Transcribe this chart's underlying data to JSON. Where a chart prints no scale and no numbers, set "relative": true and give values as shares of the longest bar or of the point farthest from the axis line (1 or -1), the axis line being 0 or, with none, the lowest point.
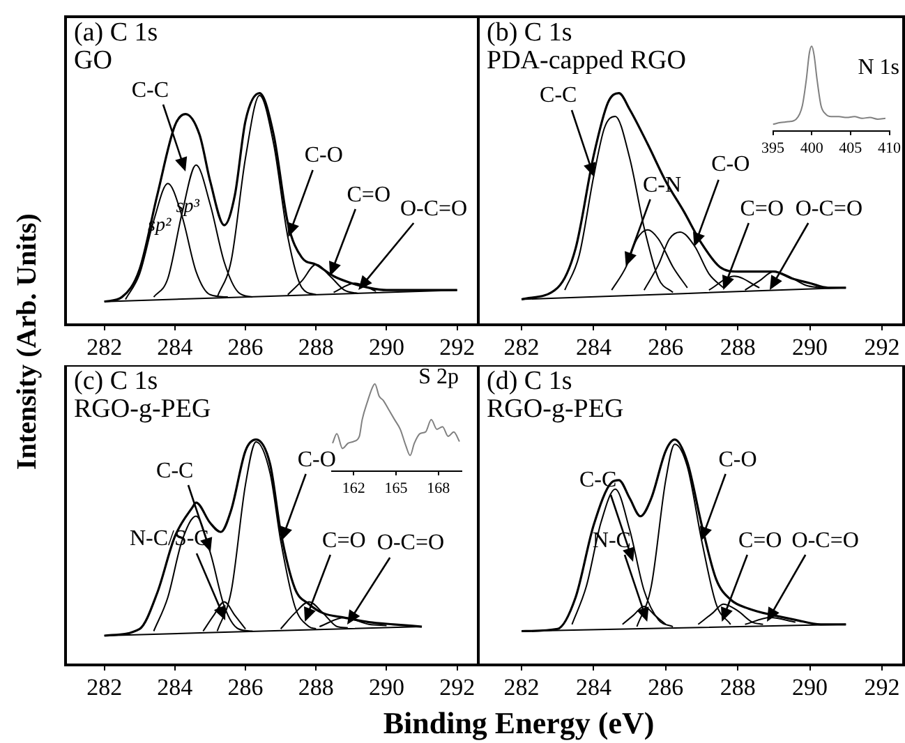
{
  "chart_data": [
    {
      "type": "line",
      "title": "(a) C 1s",
      "subtitle": "GO",
      "ylabel": "Intensity (Arb. Units)",
      "relative": true,
      "xlim": [
        280.9,
        292.6
      ],
      "xticks": [
        282,
        284,
        286,
        288,
        290,
        292
      ],
      "tick_labels": "x",
      "series": [
        {
          "color": "#000000",
          "x": [
            282,
            282.5,
            283,
            283.5,
            284,
            284.3,
            284.7,
            285,
            285.4,
            285.7,
            286,
            286.4,
            286.8,
            287.2,
            287.6,
            288,
            288.5,
            289,
            289.5,
            290,
            291,
            292
          ],
          "values": [
            0.1,
            0.12,
            0.24,
            0.56,
            0.86,
            0.91,
            0.82,
            0.62,
            0.43,
            0.56,
            0.88,
            1.0,
            0.82,
            0.44,
            0.29,
            0.26,
            0.21,
            0.18,
            0.16,
            0.15,
            0.15,
            0.15
          ]
        },
        {
          "color": "#000000",
          "x": [
            282,
            292
          ],
          "values": [
            0.1,
            0.15
          ]
        },
        {
          "name": "sp²",
          "color": "#000000",
          "x": [
            282.6,
            283,
            283.4,
            283.8,
            284.2,
            284.6,
            285,
            285.5
          ],
          "values": [
            0.11,
            0.22,
            0.45,
            0.61,
            0.47,
            0.23,
            0.13,
            0.12
          ]
        },
        {
          "name": "sp³",
          "color": "#000000",
          "x": [
            283.4,
            283.8,
            284.2,
            284.6,
            285,
            285.4,
            285.8,
            286.2
          ],
          "values": [
            0.12,
            0.2,
            0.48,
            0.69,
            0.52,
            0.27,
            0.14,
            0.12
          ]
        },
        {
          "color": "#000000",
          "x": [
            285.2,
            285.6,
            286,
            286.4,
            286.8,
            287.2,
            287.6,
            288
          ],
          "values": [
            0.12,
            0.28,
            0.72,
            0.99,
            0.78,
            0.38,
            0.16,
            0.13
          ]
        },
        {
          "color": "#000000",
          "x": [
            287.2,
            287.6,
            288,
            288.4,
            288.8,
            289.2
          ],
          "values": [
            0.13,
            0.19,
            0.26,
            0.21,
            0.15,
            0.135
          ]
        },
        {
          "color": "#000000",
          "x": [
            288.5,
            289.1,
            289.7
          ],
          "values": [
            0.14,
            0.18,
            0.145
          ]
        }
      ],
      "annotations": [
        {
          "text": "C-C",
          "x": 284.3,
          "y": 0.66
        },
        {
          "text": "C-O",
          "x": 287.2,
          "y": 0.38
        },
        {
          "text": "C=O",
          "x": 288.4,
          "y": 0.21
        },
        {
          "text": "O-C=O",
          "x": 289.2,
          "y": 0.15
        }
      ]
    },
    {
      "type": "line",
      "title": "(b) C 1s",
      "subtitle": "PDA-capped RGO",
      "relative": true,
      "xlim": [
        280.8,
        292.6
      ],
      "xticks": [
        282,
        284,
        286,
        288,
        290,
        292
      ],
      "tick_labels": "x",
      "series": [
        {
          "color": "#000000",
          "x": [
            282,
            283,
            283.5,
            284,
            284.4,
            284.7,
            285,
            285.5,
            286,
            286.5,
            287,
            287.5,
            288,
            288.5,
            289,
            289.5,
            290,
            290.5,
            291
          ],
          "values": [
            0.11,
            0.16,
            0.33,
            0.73,
            0.96,
            1.0,
            0.93,
            0.78,
            0.62,
            0.49,
            0.35,
            0.25,
            0.23,
            0.23,
            0.23,
            0.2,
            0.18,
            0.16,
            0.16
          ]
        },
        {
          "color": "#000000",
          "x": [
            282,
            291
          ],
          "values": [
            0.11,
            0.16
          ]
        },
        {
          "color": "#000000",
          "x": [
            283.2,
            283.6,
            284,
            284.3,
            284.6,
            285,
            285.4,
            285.8,
            286.2
          ],
          "values": [
            0.15,
            0.3,
            0.64,
            0.85,
            0.9,
            0.72,
            0.42,
            0.2,
            0.14
          ]
        },
        {
          "color": "#000000",
          "x": [
            284.5,
            284.9,
            285.2,
            285.5,
            285.8,
            286.2,
            286.6
          ],
          "values": [
            0.15,
            0.25,
            0.37,
            0.41,
            0.37,
            0.25,
            0.16
          ]
        },
        {
          "color": "#000000",
          "x": [
            285.4,
            285.8,
            286.1,
            286.4,
            286.8,
            287.2,
            287.6
          ],
          "values": [
            0.15,
            0.26,
            0.37,
            0.4,
            0.34,
            0.22,
            0.16
          ]
        },
        {
          "color": "#000000",
          "x": [
            287.2,
            287.9,
            288.6
          ],
          "values": [
            0.15,
            0.21,
            0.16
          ]
        },
        {
          "color": "#000000",
          "x": [
            288.2,
            288.6,
            289,
            289.4,
            289.9,
            290.3
          ],
          "values": [
            0.15,
            0.19,
            0.23,
            0.21,
            0.17,
            0.16
          ]
        }
      ],
      "annotations": [
        {
          "text": "C-C",
          "x": 284.0,
          "y": 0.64
        },
        {
          "text": "C-N",
          "x": 284.9,
          "y": 0.25
        },
        {
          "text": "C-O",
          "x": 286.8,
          "y": 0.34
        },
        {
          "text": "C=O",
          "x": 287.6,
          "y": 0.15
        },
        {
          "text": "O-C=O",
          "x": 288.9,
          "y": 0.15
        }
      ]
    },
    {
      "type": "line",
      "title": "N 1s",
      "relative": true,
      "xlim": [
        395,
        410
      ],
      "xticks": [
        395,
        400,
        405,
        410
      ],
      "tick_labels": "x",
      "series": [
        {
          "color": "#808080",
          "x": [
            395,
            396,
            397,
            398,
            398.8,
            399.3,
            399.7,
            400,
            400.3,
            400.7,
            401.2,
            401.8,
            402.5,
            403.5,
            404.5,
            405.5,
            406.5,
            407.5,
            408.5,
            409.5
          ],
          "values": [
            0.08,
            0.1,
            0.11,
            0.14,
            0.3,
            0.6,
            0.92,
            1.0,
            0.9,
            0.6,
            0.3,
            0.2,
            0.17,
            0.17,
            0.16,
            0.17,
            0.15,
            0.16,
            0.14,
            0.15
          ]
        }
      ]
    },
    {
      "type": "line",
      "title": "(c) C 1s",
      "subtitle": "RGO-g-PEG",
      "xlabel": "Binding Energy (eV)",
      "relative": true,
      "xlim": [
        280.9,
        292.6
      ],
      "xticks": [
        282,
        284,
        286,
        288,
        290,
        292
      ],
      "tick_labels": "x",
      "series": [
        {
          "color": "#000000",
          "x": [
            282,
            283,
            283.5,
            284,
            284.5,
            284.6,
            285,
            285.3,
            285.6,
            286,
            286.3,
            286.7,
            287,
            287.4,
            287.8,
            288.2,
            288.8,
            289.5,
            290.2,
            291
          ],
          "values": [
            0.13,
            0.16,
            0.32,
            0.57,
            0.7,
            0.72,
            0.63,
            0.59,
            0.69,
            0.95,
            1.0,
            0.89,
            0.59,
            0.34,
            0.27,
            0.23,
            0.21,
            0.19,
            0.18,
            0.17
          ]
        },
        {
          "color": "#000000",
          "x": [
            282,
            291
          ],
          "values": [
            0.13,
            0.17
          ]
        },
        {
          "color": "#000000",
          "x": [
            283.4,
            283.8,
            284.2,
            284.6,
            285,
            285.4,
            285.8,
            286.2
          ],
          "values": [
            0.15,
            0.3,
            0.55,
            0.66,
            0.5,
            0.26,
            0.16,
            0.15
          ]
        },
        {
          "color": "#000000",
          "x": [
            284.8,
            285.1,
            285.4,
            285.7,
            286
          ],
          "values": [
            0.15,
            0.22,
            0.28,
            0.22,
            0.16
          ]
        },
        {
          "color": "#000000",
          "x": [
            285.2,
            285.6,
            286,
            286.3,
            286.7,
            287,
            287.4,
            287.8,
            288
          ],
          "values": [
            0.15,
            0.33,
            0.8,
            0.99,
            0.85,
            0.55,
            0.26,
            0.17,
            0.16
          ]
        },
        {
          "color": "#000000",
          "x": [
            287,
            287.4,
            287.8,
            288.2,
            288.6,
            288.9
          ],
          "values": [
            0.16,
            0.23,
            0.28,
            0.23,
            0.17,
            0.165
          ]
        },
        {
          "color": "#000000",
          "x": [
            288.1,
            288.8,
            289.5,
            290
          ],
          "values": [
            0.17,
            0.21,
            0.18,
            0.175
          ]
        }
      ],
      "annotations": [
        {
          "text": "C-C",
          "x": 285.0,
          "y": 0.5
        },
        {
          "text": "N-C/S-C",
          "x": 285.44,
          "y": 0.2
        },
        {
          "text": "C-O",
          "x": 287.0,
          "y": 0.55
        },
        {
          "text": "C=O",
          "x": 287.7,
          "y": 0.19
        },
        {
          "text": "O-C=O",
          "x": 288.9,
          "y": 0.18
        }
      ]
    },
    {
      "type": "line",
      "title": "S 2p",
      "relative": true,
      "xlim": [
        160.45,
        169.65
      ],
      "xticks": [
        162,
        165,
        168
      ],
      "tick_labels": "x",
      "series": [
        {
          "color": "#808080",
          "x": [
            160.5,
            160.8,
            161.2,
            161.6,
            162,
            162.4,
            162.6,
            163,
            163.3,
            163.5,
            163.8,
            164.1,
            164.5,
            164.9,
            165.3,
            165.7,
            166,
            166.3,
            166.7,
            167.1,
            167.5,
            167.9,
            168.3,
            168.7,
            169.1,
            169.5
          ],
          "values": [
            0.32,
            0.43,
            0.26,
            0.32,
            0.34,
            0.4,
            0.59,
            0.81,
            0.95,
            1.0,
            0.86,
            0.81,
            0.7,
            0.59,
            0.48,
            0.29,
            0.18,
            0.32,
            0.43,
            0.45,
            0.59,
            0.48,
            0.51,
            0.4,
            0.45,
            0.34
          ]
        }
      ]
    },
    {
      "type": "line",
      "title": "(d) C 1s",
      "subtitle": "RGO-g-PEG",
      "relative": true,
      "xlim": [
        280.8,
        292.6
      ],
      "xticks": [
        282,
        284,
        286,
        288,
        290,
        292
      ],
      "tick_labels": "x",
      "series": [
        {
          "color": "#000000",
          "x": [
            282,
            283,
            283.5,
            284,
            284.5,
            284.7,
            285,
            285.3,
            285.6,
            286,
            286.25,
            286.6,
            287,
            287.4,
            287.8,
            288.3,
            289,
            289.6,
            290.3,
            291
          ],
          "values": [
            0.15,
            0.16,
            0.3,
            0.62,
            0.81,
            0.82,
            0.74,
            0.66,
            0.74,
            0.95,
            1.0,
            0.9,
            0.62,
            0.38,
            0.29,
            0.25,
            0.22,
            0.2,
            0.18,
            0.18
          ]
        },
        {
          "color": "#000000",
          "x": [
            282,
            291
          ],
          "values": [
            0.15,
            0.18
          ]
        },
        {
          "color": "#000000",
          "x": [
            283.4,
            283.8,
            284.2,
            284.6,
            285,
            285.4,
            285.8,
            286.2
          ],
          "values": [
            0.18,
            0.35,
            0.63,
            0.78,
            0.6,
            0.33,
            0.2,
            0.17
          ]
        },
        {
          "color": "#000000",
          "x": [
            284.8,
            285.1,
            285.4,
            285.7,
            286
          ],
          "values": [
            0.18,
            0.22,
            0.26,
            0.22,
            0.18
          ]
        },
        {
          "color": "#000000",
          "x": [
            285.2,
            285.6,
            286,
            286.25,
            286.6,
            287,
            287.4,
            287.8
          ],
          "values": [
            0.17,
            0.35,
            0.82,
            0.98,
            0.88,
            0.55,
            0.27,
            0.18
          ]
        },
        {
          "color": "#000000",
          "x": [
            286.9,
            287.3,
            287.6,
            288,
            288.4,
            288.7
          ],
          "values": [
            0.18,
            0.23,
            0.27,
            0.24,
            0.19,
            0.18
          ]
        },
        {
          "color": "#000000",
          "x": [
            288.2,
            288.9,
            289.6
          ],
          "values": [
            0.18,
            0.21,
            0.19
          ]
        }
      ],
      "annotations": [
        {
          "text": "C-C",
          "x": 285.1,
          "y": 0.46
        },
        {
          "text": "N-C",
          "x": 285.5,
          "y": 0.19
        },
        {
          "text": "C-O",
          "x": 287.0,
          "y": 0.55
        },
        {
          "text": "C=O",
          "x": 287.55,
          "y": 0.19
        },
        {
          "text": "O-C=O",
          "x": 288.8,
          "y": 0.19
        }
      ]
    }
  ]
}
